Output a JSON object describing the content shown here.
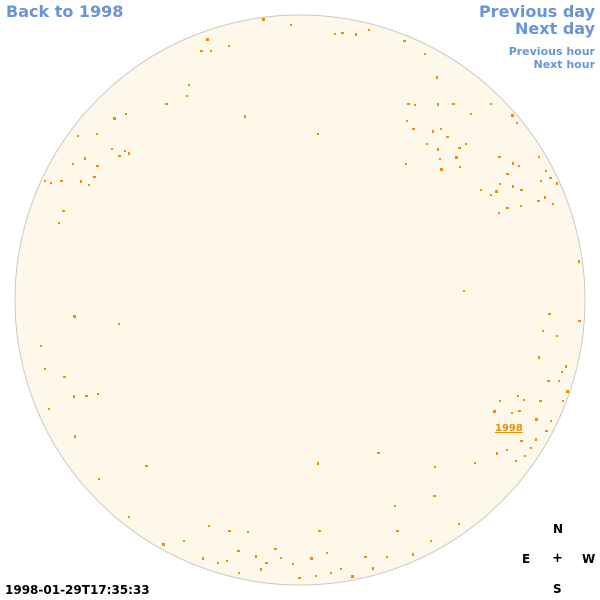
{
  "nav": {
    "back_label": "Back to 1998",
    "prev_day_label": "Previous day",
    "next_day_label": "Next day",
    "prev_hour_label": "Previous hour",
    "next_hour_label": "Next hour"
  },
  "disk": {
    "fill_color": "#fdf8ea",
    "border_color": "#c9c9c9",
    "spot_color": "#f08c00"
  },
  "region_label": "1998",
  "compass": {
    "n": "N",
    "e": "E",
    "center": "+",
    "w": "W",
    "s": "S"
  },
  "timestamp": "1998-01-29T17:35:33"
}
